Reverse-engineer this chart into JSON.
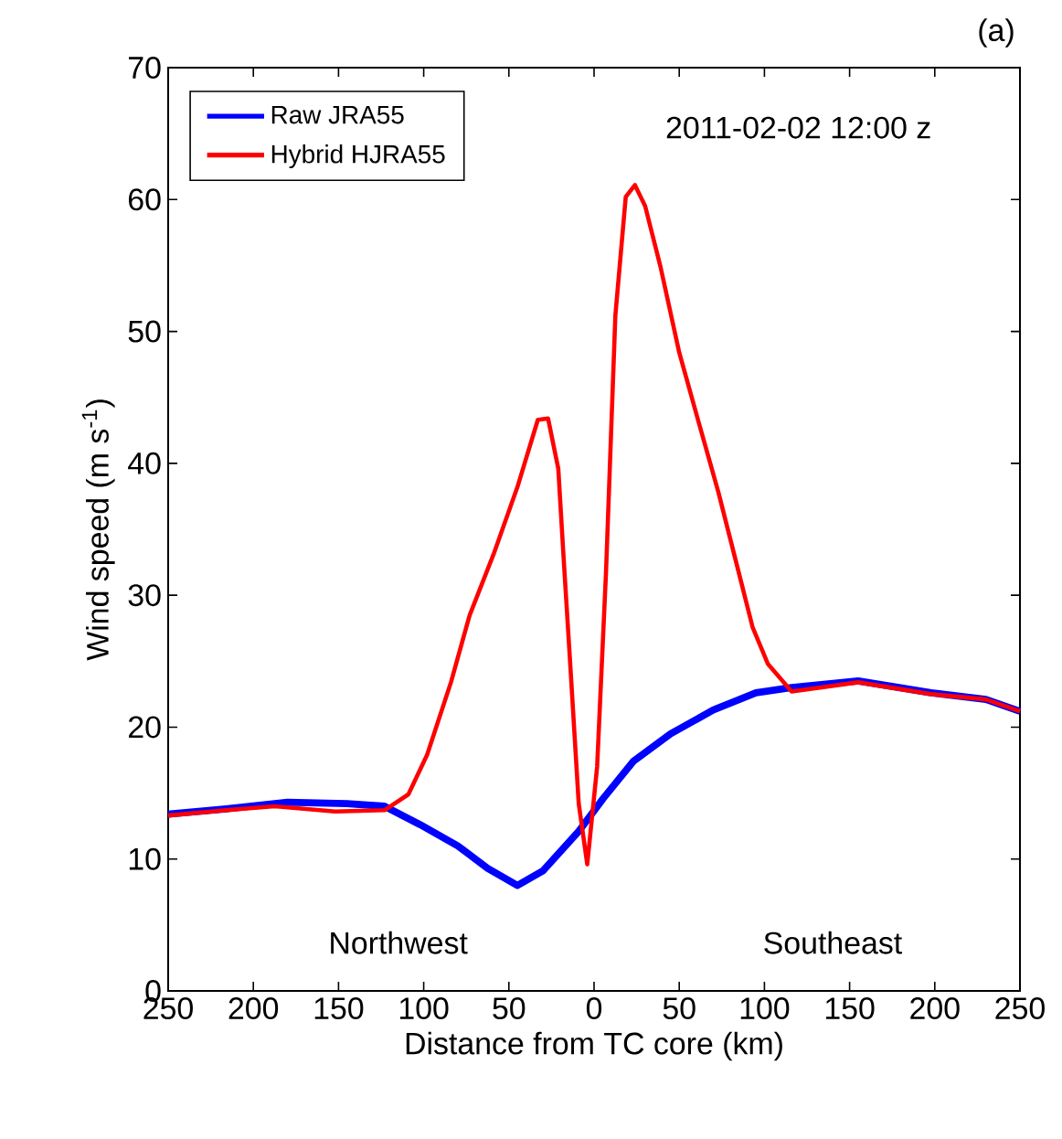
{
  "chart_data": {
    "type": "line",
    "xlabel": "Distance from TC core (km)",
    "ylabel": "Wind speed  (m s$^{-1}$)",
    "annotations": [
      "(a)",
      "2011-02-02 12:00 z",
      "Northwest",
      "Southeast"
    ],
    "xlim": [
      -250,
      250
    ],
    "xticks": [
      {
        "value": -250,
        "label": "250"
      },
      {
        "value": -200,
        "label": "200"
      },
      {
        "value": -150,
        "label": "150"
      },
      {
        "value": -100,
        "label": "100"
      },
      {
        "value": -50,
        "label": "50"
      },
      0,
      50,
      100,
      150,
      200,
      250
    ],
    "ylim": [
      0,
      70
    ],
    "yticks": [
      0,
      10,
      20,
      30,
      40,
      50,
      60,
      70
    ],
    "grid": false,
    "legend": "top left",
    "marker": "none",
    "line_style": "solid",
    "series": [
      {
        "name": "Raw JRA55",
        "color": "#0000ff",
        "x": [
          -250,
          -216,
          -180,
          -145,
          -123,
          -102,
          -80,
          -62.5,
          -45,
          -30,
          -9,
          5.4,
          23,
          45,
          70,
          95,
          116,
          155,
          198,
          230,
          250
        ],
        "values": [
          13.4,
          13.8,
          14.3,
          14.2,
          14.0,
          12.6,
          11.0,
          9.3,
          8.0,
          9.1,
          12.1,
          14.6,
          17.4,
          19.5,
          21.3,
          22.6,
          23.0,
          23.5,
          22.6,
          22.1,
          21.2
        ]
      },
      {
        "name": "Hybrid HJRA55",
        "color": "#ff0000",
        "x": [
          -250,
          -216,
          -187.5,
          -152,
          -123,
          -109,
          -98,
          -84,
          -73,
          -59,
          -45,
          -33,
          -27,
          -21,
          -18,
          -14,
          -9,
          -4,
          1.8,
          7,
          12.5,
          18.6,
          24,
          30,
          39,
          50,
          61,
          73,
          84,
          93,
          102,
          116,
          155,
          198,
          230,
          250
        ],
        "values": [
          13.3,
          13.7,
          14.0,
          13.6,
          13.7,
          14.9,
          17.9,
          23.4,
          28.5,
          33.1,
          38.2,
          43.3,
          43.4,
          39.6,
          33.1,
          24.8,
          14.2,
          9.6,
          17.0,
          31.7,
          51.2,
          60.2,
          61.1,
          59.5,
          54.9,
          48.4,
          43.3,
          37.8,
          32.2,
          27.6,
          24.8,
          22.7,
          23.4,
          22.5,
          22.1,
          21.2
        ]
      }
    ]
  }
}
